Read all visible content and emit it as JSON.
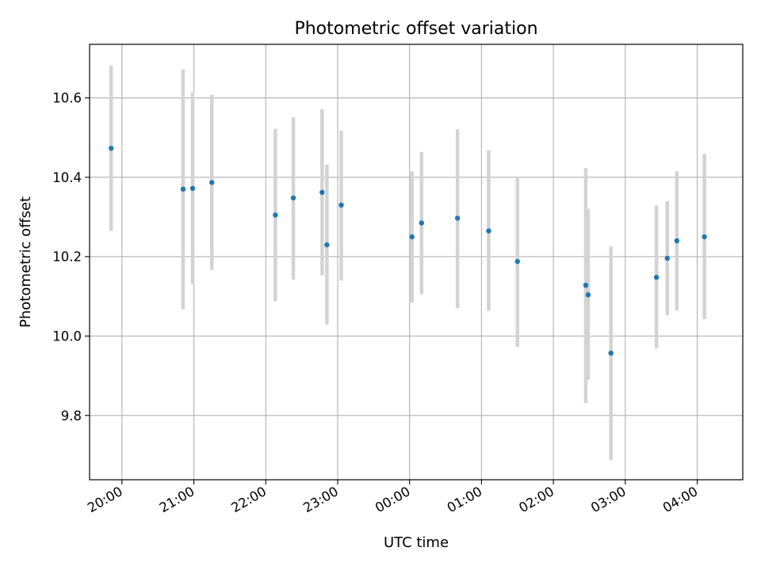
{
  "chart_data": {
    "type": "scatter",
    "title": "Photometric offset variation",
    "xlabel": "UTC time",
    "ylabel": "Photometric offset",
    "x_axis_type": "time",
    "x_range": [
      "19:33",
      "04:38"
    ],
    "ylim": [
      9.638,
      10.735
    ],
    "grid": true,
    "x_tick_labels": [
      "20:00",
      "21:00",
      "22:00",
      "23:00",
      "00:00",
      "01:00",
      "02:00",
      "03:00",
      "04:00"
    ],
    "x_ticks": [
      "20:00",
      "21:00",
      "22:00",
      "23:00",
      "00:00",
      "01:00",
      "02:00",
      "03:00",
      "04:00"
    ],
    "y_ticks": [
      9.8,
      10.0,
      10.2,
      10.4,
      10.6
    ],
    "y_tick_labels": [
      "9.8",
      "10.0",
      "10.2",
      "10.4",
      "10.6"
    ],
    "marker_color": "#1f77b4",
    "errorbar_color": "#d3d3d3",
    "points": [
      {
        "x": "19:51",
        "y": 10.473,
        "yerr_low": 10.265,
        "yerr_high": 10.682
      },
      {
        "x": "20:51",
        "y": 10.37,
        "yerr_low": 10.068,
        "yerr_high": 10.672
      },
      {
        "x": "20:59",
        "y": 10.372,
        "yerr_low": 10.131,
        "yerr_high": 10.613
      },
      {
        "x": "21:15",
        "y": 10.387,
        "yerr_low": 10.167,
        "yerr_high": 10.608
      },
      {
        "x": "22:08",
        "y": 10.305,
        "yerr_low": 10.088,
        "yerr_high": 10.522
      },
      {
        "x": "22:23",
        "y": 10.348,
        "yerr_low": 10.142,
        "yerr_high": 10.551
      },
      {
        "x": "22:47",
        "y": 10.362,
        "yerr_low": 10.153,
        "yerr_high": 10.572
      },
      {
        "x": "22:51",
        "y": 10.23,
        "yerr_low": 10.029,
        "yerr_high": 10.432
      },
      {
        "x": "23:03",
        "y": 10.33,
        "yerr_low": 10.14,
        "yerr_high": 10.518
      },
      {
        "x": "00:02",
        "y": 10.25,
        "yerr_low": 10.084,
        "yerr_high": 10.415
      },
      {
        "x": "00:10",
        "y": 10.285,
        "yerr_low": 10.106,
        "yerr_high": 10.464
      },
      {
        "x": "00:40",
        "y": 10.297,
        "yerr_low": 10.07,
        "yerr_high": 10.521
      },
      {
        "x": "01:06",
        "y": 10.265,
        "yerr_low": 10.064,
        "yerr_high": 10.468
      },
      {
        "x": "01:30",
        "y": 10.188,
        "yerr_low": 9.973,
        "yerr_high": 10.4
      },
      {
        "x": "02:27",
        "y": 10.128,
        "yerr_low": 9.831,
        "yerr_high": 10.423
      },
      {
        "x": "02:29",
        "y": 10.104,
        "yerr_low": 9.89,
        "yerr_high": 10.32
      },
      {
        "x": "02:48",
        "y": 9.957,
        "yerr_low": 9.687,
        "yerr_high": 10.226
      },
      {
        "x": "03:26",
        "y": 10.148,
        "yerr_low": 9.969,
        "yerr_high": 10.329
      },
      {
        "x": "03:35",
        "y": 10.196,
        "yerr_low": 10.052,
        "yerr_high": 10.34
      },
      {
        "x": "03:43",
        "y": 10.24,
        "yerr_low": 10.064,
        "yerr_high": 10.415
      },
      {
        "x": "04:06",
        "y": 10.25,
        "yerr_low": 10.043,
        "yerr_high": 10.459
      }
    ]
  }
}
